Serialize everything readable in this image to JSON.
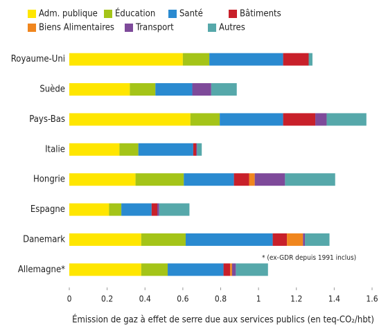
{
  "chart_data": {
    "type": "stacked_bar_horizontal",
    "categories": [
      "Royaume-Uni",
      "Suède",
      "Pays-Bas",
      "Italie",
      "Hongrie",
      "Espagne",
      "Danemark",
      "Allemagne*"
    ],
    "series": [
      {
        "name": "Adm. publique",
        "color": "#ffe600",
        "values": [
          0.6,
          0.32,
          0.64,
          0.265,
          0.35,
          0.21,
          0.38,
          0.38
        ]
      },
      {
        "name": "Éducation",
        "color": "#a4c418",
        "values": [
          0.14,
          0.135,
          0.155,
          0.1,
          0.255,
          0.065,
          0.235,
          0.14
        ]
      },
      {
        "name": "Santé",
        "color": "#2a8ad0",
        "values": [
          0.39,
          0.195,
          0.335,
          0.29,
          0.265,
          0.16,
          0.46,
          0.295
        ]
      },
      {
        "name": "Bâtiments",
        "color": "#c8202a",
        "values": [
          0.135,
          0,
          0.17,
          0.015,
          0.08,
          0.03,
          0.075,
          0.035
        ]
      },
      {
        "name": "Biens Alimentaires",
        "color": "#f0861e",
        "values": [
          0,
          0,
          0,
          0,
          0.03,
          0,
          0.085,
          0.01
        ]
      },
      {
        "name": "Transport",
        "color": "#7e4a9a",
        "values": [
          0,
          0.1,
          0.06,
          0.005,
          0.16,
          0.01,
          0.01,
          0.02
        ]
      },
      {
        "name": "Autres",
        "color": "#56a8aa",
        "values": [
          0.02,
          0.135,
          0.21,
          0.025,
          0.265,
          0.16,
          0.13,
          0.17
        ]
      }
    ],
    "xlim": [
      0,
      1.6
    ],
    "xticks": [
      0,
      0.2,
      0.4,
      0.6,
      0.8,
      1,
      1.2,
      1.4,
      1.6
    ],
    "xlabel": "Émission de gaz à effet de serre due aux services publics (en teq-CO₂/hbt)",
    "annotation": "* (ex-GDR depuis 1991 inclus)"
  }
}
